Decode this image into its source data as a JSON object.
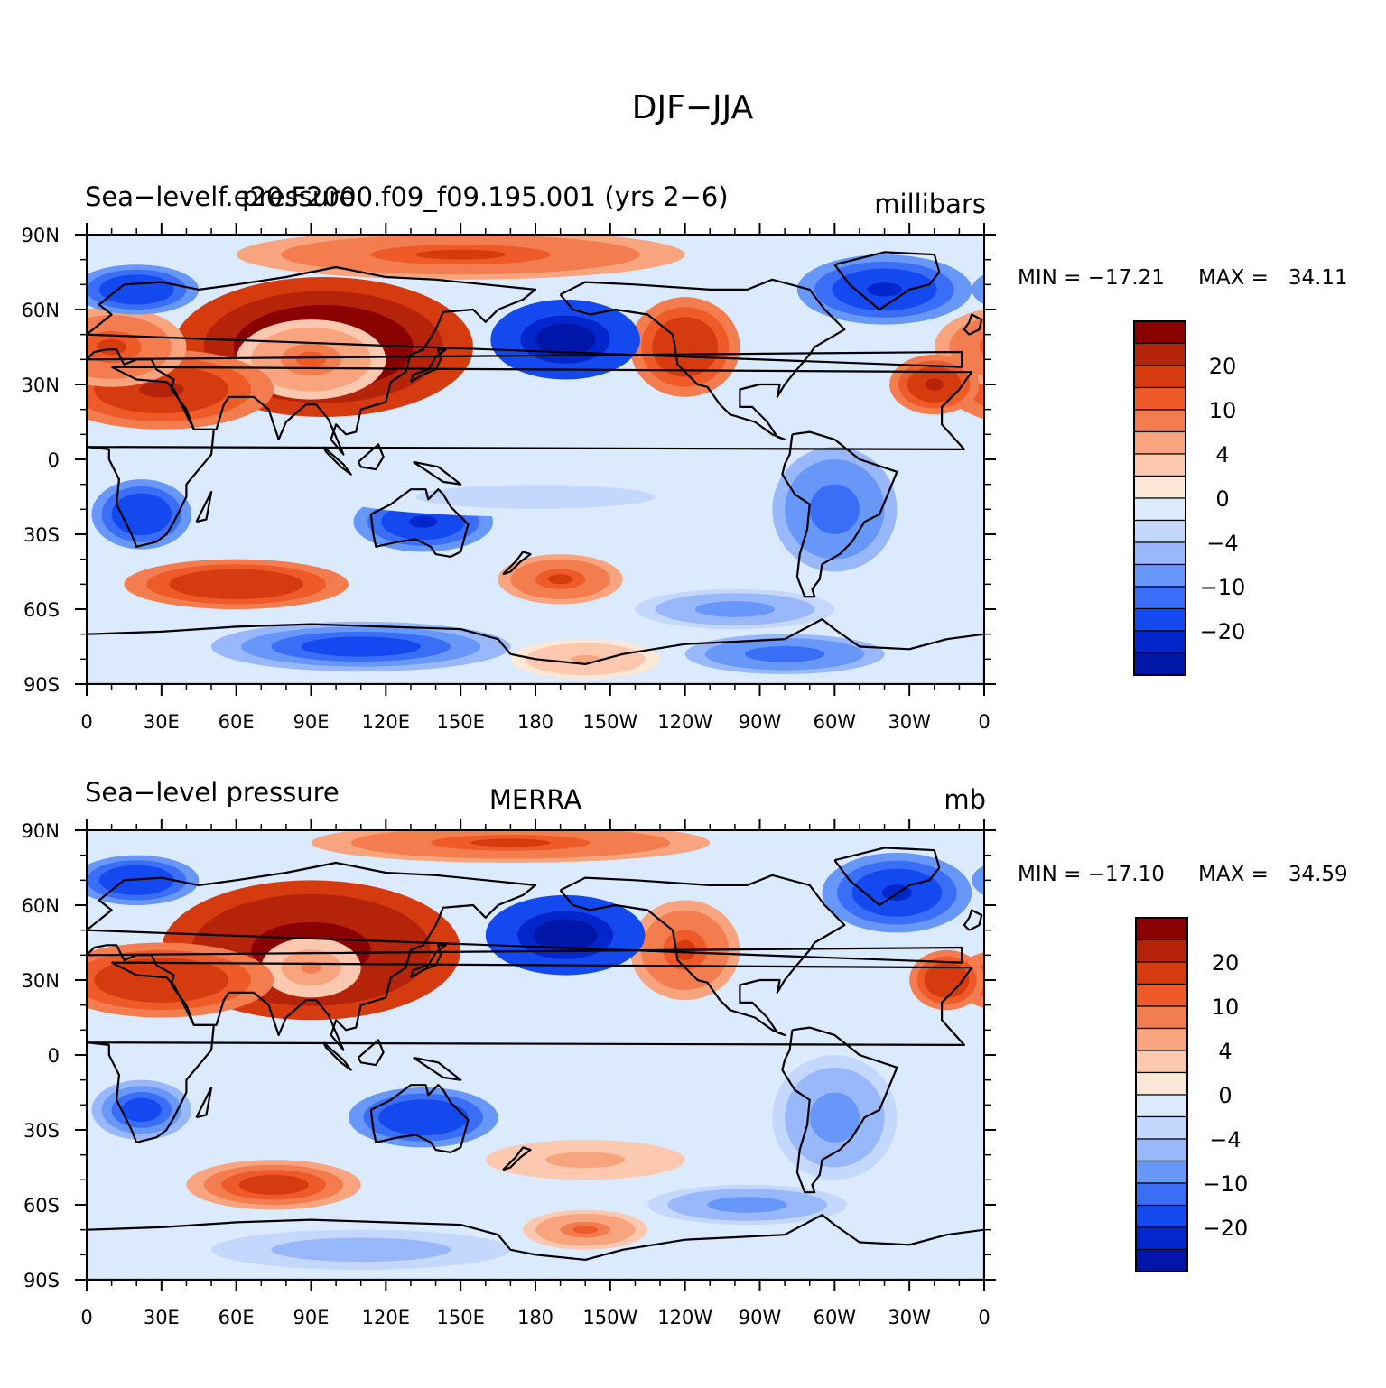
{
  "title": "DJF−JJA",
  "colors": {
    "levels": [
      "#00008b",
      "#0016a9",
      "#0026cc",
      "#1449f0",
      "#3a6ef6",
      "#6897fa",
      "#99b8fb",
      "#c4d8fd",
      "#dceafe",
      "#fde7d7",
      "#fcc9b0",
      "#f8a47e",
      "#f47d4f",
      "#ee5a28",
      "#d63b10",
      "#b4230a",
      "#8b0000"
    ],
    "ocean": "#dceafe",
    "coast": "#000000"
  },
  "chart_data": [
    {
      "type": "heatmap",
      "title_left": "Sea−levelf.e20.F2000.f09_f09.195.001 (yrs 2−6)",
      "title_left_overlap": "pressure",
      "title_center": "",
      "title_right": "millibars",
      "min_label": "MIN = −17.21",
      "max_label": "MAX =   34.11",
      "min": -17.21,
      "max": 34.11,
      "xlabels": [
        "0",
        "30E",
        "60E",
        "90E",
        "120E",
        "150E",
        "180",
        "150W",
        "120W",
        "90W",
        "60W",
        "30W",
        "0"
      ],
      "ylabels": [
        "90N",
        "60N",
        "30N",
        "0",
        "30S",
        "60S",
        "90S"
      ],
      "xlim": [
        0,
        360
      ],
      "ylim": [
        -90,
        90
      ],
      "levels": [
        -25,
        -20,
        -15,
        -10,
        -8,
        -6,
        -4,
        -2,
        0,
        2,
        4,
        6,
        8,
        10,
        15,
        20,
        25
      ],
      "colorbar_labels": [
        "20",
        "10",
        "4",
        "0",
        "−4",
        "−10",
        "−20"
      ],
      "blobs": [
        {
          "lon": 95,
          "lat": 45,
          "rx": 60,
          "ry": 28,
          "v": 28
        },
        {
          "lon": 90,
          "lat": 40,
          "rx": 30,
          "ry": 16,
          "v": 8
        },
        {
          "lon": 30,
          "lat": 28,
          "rx": 45,
          "ry": 16,
          "v": 16
        },
        {
          "lon": 10,
          "lat": 45,
          "rx": 30,
          "ry": 16,
          "v": 10
        },
        {
          "lon": 240,
          "lat": 45,
          "rx": 22,
          "ry": 20,
          "v": 14
        },
        {
          "lon": 340,
          "lat": 30,
          "rx": 18,
          "ry": 12,
          "v": 16
        },
        {
          "lon": 150,
          "lat": 82,
          "rx": 90,
          "ry": 10,
          "v": 10
        },
        {
          "lon": 192,
          "lat": 48,
          "rx": 30,
          "ry": 16,
          "v": -24
        },
        {
          "lon": 20,
          "lat": 68,
          "rx": 25,
          "ry": 10,
          "v": -14
        },
        {
          "lon": 320,
          "lat": 68,
          "rx": 35,
          "ry": 14,
          "v": -16
        },
        {
          "lon": 22,
          "lat": -22,
          "rx": 20,
          "ry": 14,
          "v": -14
        },
        {
          "lon": 135,
          "lat": -25,
          "rx": 28,
          "ry": 12,
          "v": -16
        },
        {
          "lon": 300,
          "lat": -20,
          "rx": 25,
          "ry": 25,
          "v": -10
        },
        {
          "lon": 180,
          "lat": -15,
          "rx": 80,
          "ry": 8,
          "v": -3
        },
        {
          "lon": 60,
          "lat": -50,
          "rx": 45,
          "ry": 10,
          "v": 14
        },
        {
          "lon": 190,
          "lat": -48,
          "rx": 25,
          "ry": 10,
          "v": 10
        },
        {
          "lon": 260,
          "lat": -60,
          "rx": 40,
          "ry": 8,
          "v": -8
        },
        {
          "lon": 110,
          "lat": -75,
          "rx": 60,
          "ry": 10,
          "v": -12
        },
        {
          "lon": 280,
          "lat": -78,
          "rx": 40,
          "ry": 8,
          "v": -10
        },
        {
          "lon": 200,
          "lat": -80,
          "rx": 30,
          "ry": 8,
          "v": 4
        }
      ]
    },
    {
      "type": "heatmap",
      "title_left": "Sea−level pressure",
      "title_left_overlap": "",
      "title_center": "MERRA",
      "title_right": "mb",
      "min_label": "MIN = −17.10",
      "max_label": "MAX =   34.59",
      "min": -17.1,
      "max": 34.59,
      "xlabels": [
        "0",
        "30E",
        "60E",
        "90E",
        "120E",
        "150E",
        "180",
        "150W",
        "120W",
        "90W",
        "60W",
        "30W",
        "0"
      ],
      "ylabels": [
        "90N",
        "60N",
        "30N",
        "0",
        "30S",
        "60S",
        "90S"
      ],
      "xlim": [
        0,
        360
      ],
      "ylim": [
        -90,
        90
      ],
      "levels": [
        -25,
        -20,
        -15,
        -10,
        -8,
        -6,
        -4,
        -2,
        0,
        2,
        4,
        6,
        8,
        10,
        15,
        20,
        25
      ],
      "colorbar_labels": [
        "20",
        "10",
        "4",
        "0",
        "−4",
        "−10",
        "−20"
      ],
      "blobs": [
        {
          "lon": 90,
          "lat": 42,
          "rx": 60,
          "ry": 28,
          "v": 26
        },
        {
          "lon": 90,
          "lat": 35,
          "rx": 20,
          "ry": 12,
          "v": 6
        },
        {
          "lon": 30,
          "lat": 30,
          "rx": 45,
          "ry": 15,
          "v": 14
        },
        {
          "lon": 240,
          "lat": 42,
          "rx": 22,
          "ry": 20,
          "v": 10
        },
        {
          "lon": 345,
          "lat": 30,
          "rx": 15,
          "ry": 12,
          "v": 14
        },
        {
          "lon": 170,
          "lat": 85,
          "rx": 80,
          "ry": 8,
          "v": 10
        },
        {
          "lon": 192,
          "lat": 48,
          "rx": 32,
          "ry": 16,
          "v": -24
        },
        {
          "lon": 20,
          "lat": 70,
          "rx": 25,
          "ry": 10,
          "v": -14
        },
        {
          "lon": 325,
          "lat": 65,
          "rx": 30,
          "ry": 16,
          "v": -16
        },
        {
          "lon": 22,
          "lat": -22,
          "rx": 20,
          "ry": 12,
          "v": -12
        },
        {
          "lon": 135,
          "lat": -25,
          "rx": 30,
          "ry": 12,
          "v": -14
        },
        {
          "lon": 300,
          "lat": -25,
          "rx": 25,
          "ry": 25,
          "v": -8
        },
        {
          "lon": 75,
          "lat": -52,
          "rx": 35,
          "ry": 10,
          "v": 12
        },
        {
          "lon": 200,
          "lat": -42,
          "rx": 40,
          "ry": 8,
          "v": 5
        },
        {
          "lon": 265,
          "lat": -60,
          "rx": 40,
          "ry": 8,
          "v": -8
        },
        {
          "lon": 200,
          "lat": -70,
          "rx": 25,
          "ry": 8,
          "v": 8
        },
        {
          "lon": 110,
          "lat": -78,
          "rx": 60,
          "ry": 8,
          "v": -6
        }
      ]
    }
  ]
}
